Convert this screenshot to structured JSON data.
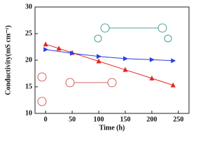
{
  "chart_data": {
    "type": "line",
    "xlabel": "Time (h)",
    "ylabel": "Conductivity(mS cm⁻¹)",
    "xlim": [
      -20,
      270
    ],
    "ylim": [
      10,
      30
    ],
    "xticks": [
      0,
      50,
      100,
      150,
      200,
      250
    ],
    "yticks": [
      10,
      15,
      20,
      25,
      30
    ],
    "series": [
      {
        "color": "#e8251f",
        "marker": "triangle-up",
        "x": [
          0,
          25,
          50,
          100,
          150,
          200,
          240
        ],
        "values": [
          23,
          22.2,
          21.4,
          19.8,
          18.2,
          16.6,
          15.3
        ]
      },
      {
        "color": "#2b3fe0",
        "marker": "triangle-right",
        "x": [
          0,
          50,
          100,
          150,
          200,
          240
        ],
        "values": [
          22,
          21.3,
          20.7,
          20.3,
          20.1,
          19.9
        ]
      }
    ]
  }
}
